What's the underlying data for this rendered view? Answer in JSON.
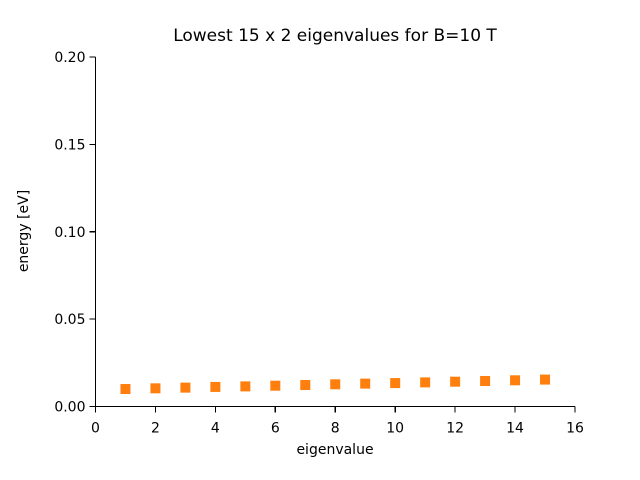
{
  "chart_data": {
    "type": "scatter",
    "title": "Lowest 15 x 2 eigenvalues for B=10 T",
    "xlabel": "eigenvalue",
    "ylabel": "energy [eV]",
    "xlim": [
      0,
      16
    ],
    "ylim": [
      0.0,
      0.2
    ],
    "xticks": [
      0,
      2,
      4,
      6,
      8,
      10,
      12,
      14,
      16
    ],
    "yticks": [
      0.0,
      0.05,
      0.1,
      0.15,
      0.2
    ],
    "ytick_labels": [
      "0.00",
      "0.05",
      "0.10",
      "0.15",
      "0.20"
    ],
    "grid": false,
    "legend": "none",
    "spines": [
      "left",
      "bottom"
    ],
    "background_color": "#ffffff",
    "axis_color": "#000000",
    "series": [
      {
        "name": "eigenvalues",
        "marker": "square",
        "color": "#ff7f0e",
        "x": [
          1,
          2,
          3,
          4,
          5,
          6,
          7,
          8,
          9,
          10,
          11,
          12,
          13,
          14,
          15
        ],
        "y": [
          0.01,
          0.0104,
          0.0108,
          0.0112,
          0.0115,
          0.0119,
          0.0123,
          0.0127,
          0.0131,
          0.0134,
          0.0138,
          0.0142,
          0.0146,
          0.015,
          0.0154
        ]
      }
    ]
  }
}
